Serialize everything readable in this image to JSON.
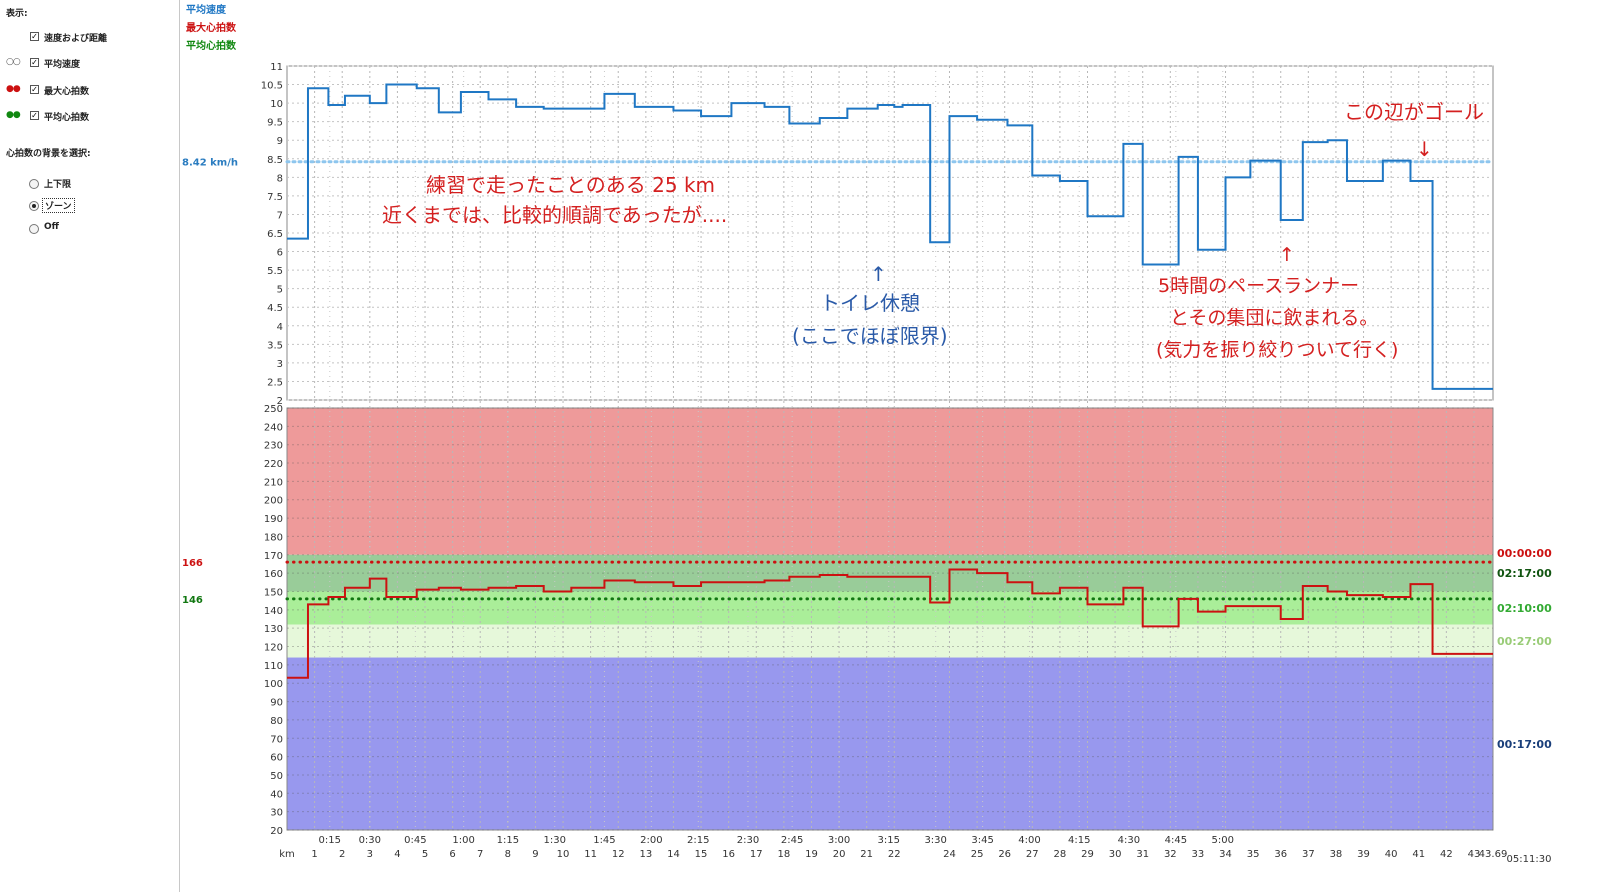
{
  "sidebar": {
    "display_label": "表示:",
    "checks": [
      {
        "label": "速度および距離",
        "checked": true
      },
      {
        "label": "平均速度",
        "checked": true
      },
      {
        "label": "最大心拍数",
        "checked": true
      },
      {
        "label": "平均心拍数",
        "checked": true
      }
    ],
    "bg_label": "心拍数の背景を選択:",
    "radios": [
      {
        "label": "上下限",
        "selected": false
      },
      {
        "label": "ゾーン",
        "selected": true
      },
      {
        "label": "Off",
        "selected": false
      }
    ]
  },
  "legend": [
    {
      "label": "平均速度",
      "color": "#1f77c4"
    },
    {
      "label": "最大心拍数",
      "color": "#cc1111"
    },
    {
      "label": "平均心拍数",
      "color": "#118811"
    }
  ],
  "chart_data": {
    "type": "line",
    "speed_panel": {
      "ylim": [
        2,
        11
      ],
      "yticks": [
        2,
        2.5,
        3,
        3.5,
        4,
        4.5,
        5,
        5.5,
        6,
        6.5,
        7,
        7.5,
        8,
        8.5,
        9,
        9.5,
        10,
        10.5,
        11
      ],
      "avg_speed_label": "8.42 km/h",
      "avg_speed": 8.42,
      "series": [
        {
          "name": "速度",
          "color": "#1f77c4",
          "x": [
            0,
            0.76,
            1.5,
            2.1,
            3,
            3.6,
            4.7,
            5.5,
            6.3,
            7.3,
            8.3,
            9.3,
            10.3,
            11.5,
            12.6,
            14,
            15,
            16.1,
            17.3,
            18.2,
            19.3,
            20.3,
            21.4,
            22,
            22.3,
            23.3,
            24,
            25,
            26.1,
            27,
            28,
            29,
            30.3,
            31,
            32.3,
            33,
            34,
            34.9,
            36,
            36.8,
            37.7,
            38.4,
            39.7,
            40.7,
            41.5,
            42.3,
            43.1,
            43.69
          ],
          "y": [
            6.35,
            10.4,
            9.95,
            10.2,
            10.0,
            10.5,
            10.4,
            9.75,
            10.3,
            10.1,
            9.9,
            9.85,
            9.85,
            10.25,
            9.9,
            9.8,
            9.65,
            10.0,
            9.9,
            9.45,
            9.6,
            9.85,
            9.95,
            9.9,
            9.95,
            6.25,
            9.65,
            9.55,
            9.4,
            8.05,
            7.9,
            6.95,
            8.9,
            5.65,
            8.55,
            6.05,
            8.0,
            8.45,
            6.85,
            8.95,
            9.0,
            7.9,
            8.45,
            7.9,
            2.3,
            2.3,
            2.3,
            2.3
          ]
        }
      ]
    },
    "hr_panel": {
      "ylim": [
        20,
        250
      ],
      "yticks": [
        20,
        30,
        40,
        50,
        60,
        70,
        80,
        90,
        100,
        110,
        120,
        130,
        140,
        150,
        160,
        170,
        180,
        190,
        200,
        210,
        220,
        230,
        240,
        250
      ],
      "max_hr": 166,
      "avg_hr": 146,
      "max_hr_label": "166",
      "avg_hr_label": "146",
      "zones": [
        {
          "from": 170,
          "to": 250,
          "color": "#ee9a9a",
          "time": "00:00:00",
          "time_color": "#cc1111"
        },
        {
          "from": 150,
          "to": 170,
          "color": "#99cc99",
          "time": "02:17:00",
          "time_color": "#115511"
        },
        {
          "from": 132,
          "to": 150,
          "color": "#aaee99",
          "time": "02:10:00",
          "time_color": "#33aa33"
        },
        {
          "from": 114,
          "to": 132,
          "color": "#e6f8da",
          "time": "00:27:00",
          "time_color": "#99cc77"
        },
        {
          "from": 20,
          "to": 114,
          "color": "#9898ee",
          "time": "00:17:00",
          "time_color": "#1a3f7a"
        }
      ],
      "series": [
        {
          "name": "心拍数",
          "color": "#cc1111",
          "x": [
            0,
            0.76,
            1.5,
            2.1,
            3,
            3.6,
            4.7,
            5.5,
            6.3,
            7.3,
            8.3,
            9.3,
            10.3,
            11.5,
            12.6,
            14,
            15,
            16.1,
            17.3,
            18.2,
            19.3,
            20.3,
            21.4,
            22,
            22.3,
            23.3,
            24,
            25,
            26.1,
            27,
            28,
            29,
            30.3,
            31,
            32.3,
            33,
            34,
            34.9,
            36,
            36.8,
            37.7,
            38.4,
            39.7,
            40.7,
            41.5,
            42.3,
            43.1,
            43.69
          ],
          "y": [
            103,
            143,
            147,
            152,
            157,
            147,
            151,
            152,
            151,
            152,
            153,
            150,
            152,
            156,
            155,
            153,
            155,
            155,
            156,
            158,
            159,
            158,
            158,
            158,
            158,
            144,
            162,
            160,
            155,
            149,
            152,
            143,
            152,
            131,
            146,
            139,
            142,
            142,
            135,
            153,
            150,
            148,
            147,
            154,
            116,
            116,
            116,
            116
          ]
        }
      ]
    },
    "x_axis": {
      "range": [
        0,
        43.69
      ],
      "unit_label": "km",
      "km_ticks": [
        1,
        2,
        3,
        4,
        5,
        6,
        7,
        8,
        9,
        10,
        11,
        12,
        13,
        14,
        15,
        16,
        17,
        18,
        19,
        20,
        21,
        22,
        24,
        25,
        26,
        27,
        28,
        29,
        30,
        31,
        32,
        33,
        34,
        35,
        36,
        37,
        38,
        39,
        40,
        41,
        42,
        43
      ],
      "km_end_label": "43.69",
      "time_ticks": [
        "0:15",
        "0:30",
        "0:45",
        "1:00",
        "1:15",
        "1:30",
        "1:45",
        "2:00",
        "2:15",
        "2:30",
        "2:45",
        "3:00",
        "3:15",
        "3:30",
        "3:45",
        "4:00",
        "4:15",
        "4:30",
        "4:45",
        "5:00"
      ],
      "time_tick_km": [
        1.55,
        3.0,
        4.65,
        6.4,
        8.0,
        9.7,
        11.5,
        13.2,
        14.9,
        16.7,
        18.3,
        20.0,
        21.8,
        23.5,
        25.2,
        26.9,
        28.7,
        30.5,
        32.2,
        33.9
      ],
      "total_time": "05:11:30"
    },
    "annotations": [
      {
        "lines": [
          "練習で走ったことのある 25 km",
          "近くまでは、比較的順調であったが...."
        ],
        "color": "#d42020"
      },
      {
        "lines": [
          "↑",
          "トイレ休憩",
          "(ここでほぼ限界)"
        ],
        "color": "#2a5aa8"
      },
      {
        "lines": [
          "この辺がゴール",
          "↓"
        ],
        "color": "#d42020"
      },
      {
        "lines": [
          "↑",
          "5時間のペースランナー",
          "とその集団に飲まれる。",
          "(気力を振り絞りついて行く)"
        ],
        "color": "#d42020"
      }
    ]
  }
}
